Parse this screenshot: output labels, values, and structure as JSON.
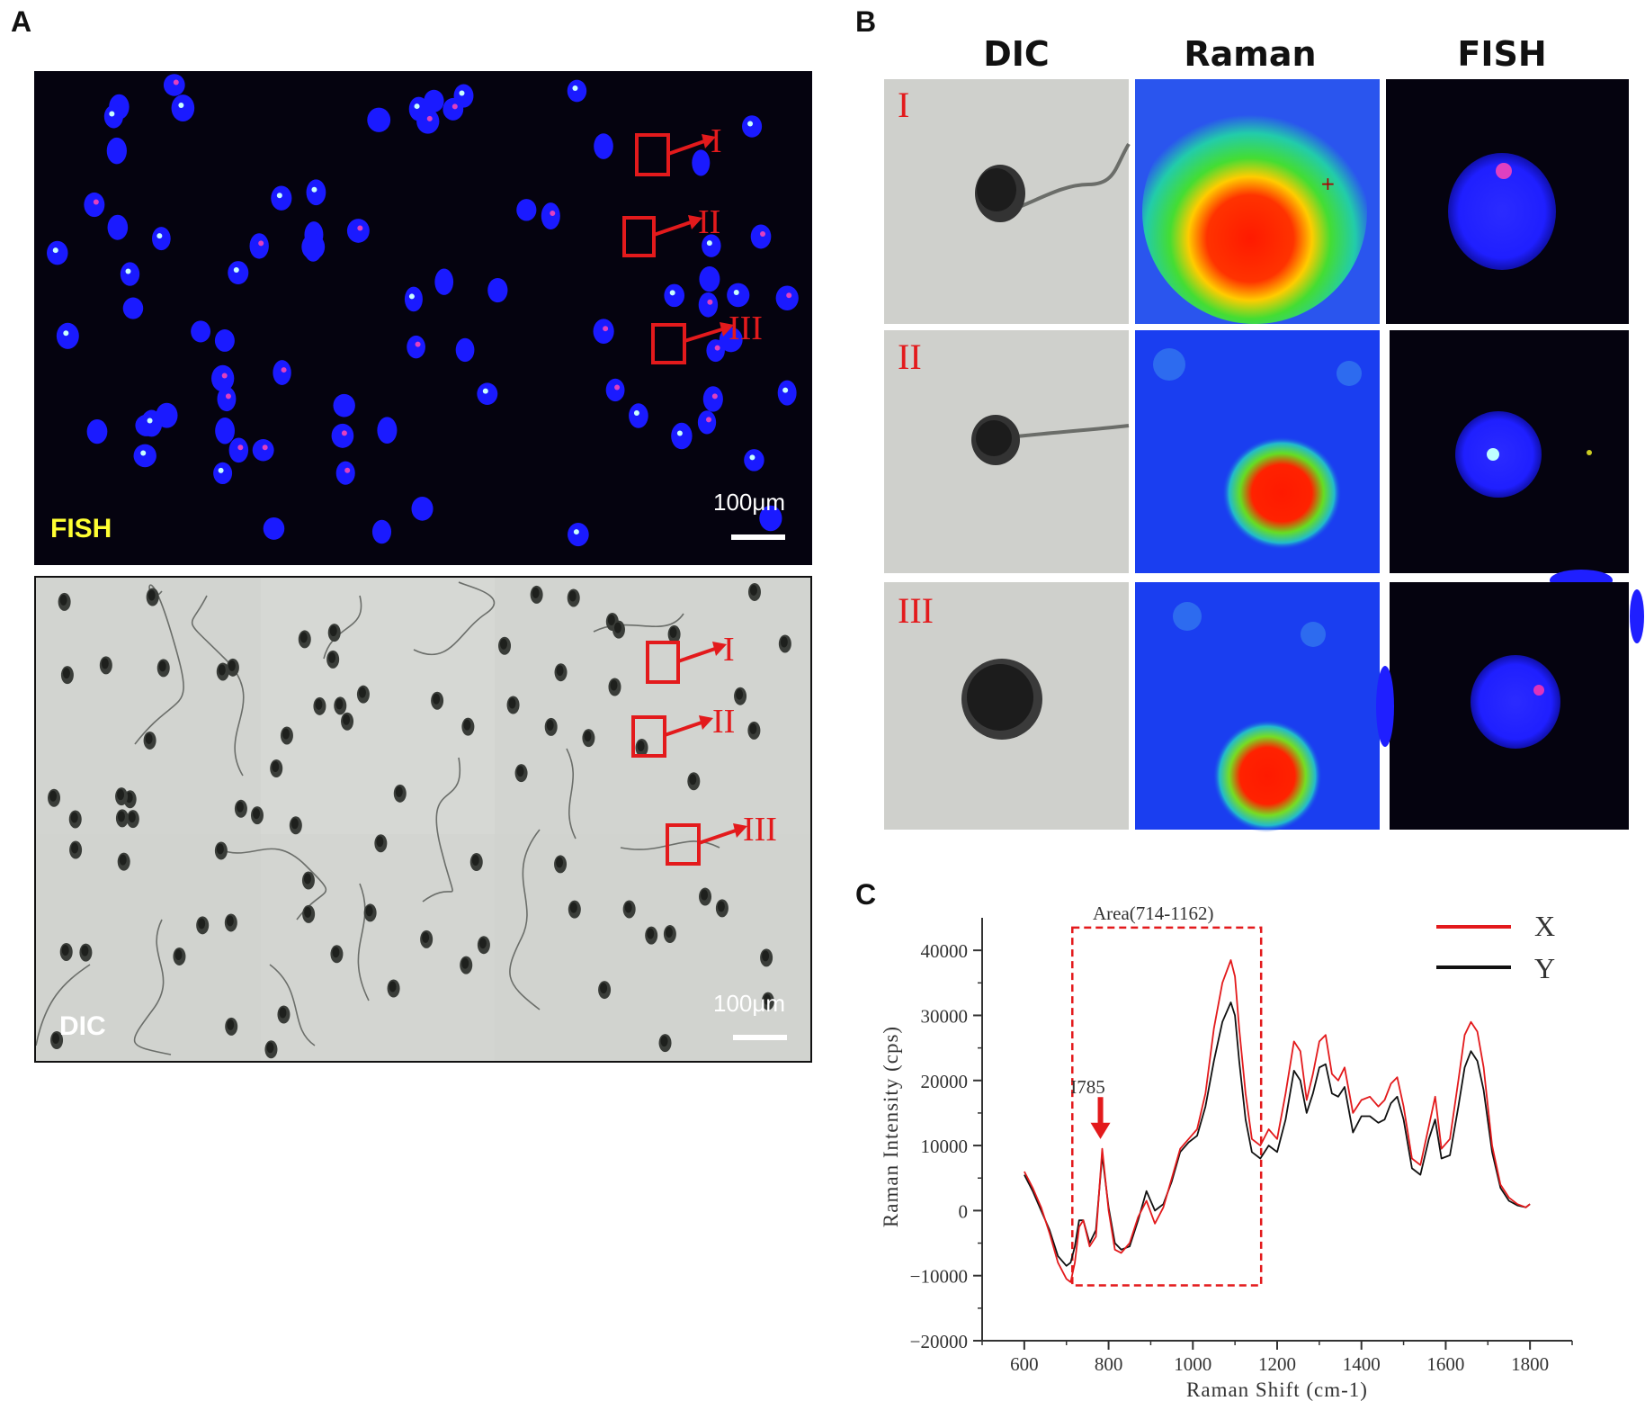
{
  "panels": {
    "a": {
      "letter": "A",
      "fish_label": "FISH",
      "dic_label": "DIC",
      "scale_bar_label": "100μm",
      "cell_markers": [
        "I",
        "II",
        "III"
      ]
    },
    "b": {
      "letter": "B",
      "columns": [
        "DIC",
        "Raman",
        "FISH"
      ],
      "rows": [
        "I",
        "II",
        "III"
      ]
    },
    "c": {
      "letter": "C"
    }
  },
  "colors": {
    "fish_background": "#05030f",
    "fish_nucleus": "#1a1aff",
    "dic_background": "#d2d4d0",
    "marker_red": "#e31a1c",
    "series_x": "#e31a1c",
    "series_y": "#111111"
  },
  "chart_data": {
    "type": "line",
    "title": "",
    "xlabel": "Raman Shift (cm-1)",
    "ylabel": "Raman Intensity (cps)",
    "xlim": [
      500,
      1900
    ],
    "ylim": [
      -20000,
      45000
    ],
    "xticks": [
      "600",
      "800",
      "1000",
      "1200",
      "1400",
      "1600",
      "1800"
    ],
    "yticks": [
      "-20000",
      "-10000",
      "0",
      "10000",
      "20000",
      "30000",
      "40000"
    ],
    "legend_position": "top-right",
    "annotations": {
      "area_box_label": "Area(714-1162)",
      "area_range": [
        714,
        1162
      ],
      "peak_label": "I785",
      "peak_x": 785
    },
    "x": [
      600,
      620,
      640,
      660,
      680,
      700,
      710,
      720,
      730,
      740,
      755,
      770,
      785,
      800,
      815,
      830,
      850,
      870,
      890,
      910,
      930,
      950,
      970,
      990,
      1010,
      1030,
      1050,
      1070,
      1090,
      1100,
      1110,
      1125,
      1140,
      1160,
      1180,
      1200,
      1220,
      1240,
      1255,
      1270,
      1285,
      1300,
      1315,
      1330,
      1345,
      1360,
      1380,
      1400,
      1420,
      1440,
      1455,
      1470,
      1485,
      1500,
      1520,
      1540,
      1560,
      1575,
      1590,
      1610,
      1630,
      1645,
      1660,
      1675,
      1690,
      1710,
      1730,
      1750,
      1770,
      1790,
      1800
    ],
    "series": [
      {
        "name": "X",
        "color": "#e31a1c",
        "values": [
          6000,
          3500,
          500,
          -3500,
          -8000,
          -10500,
          -11000,
          -8000,
          -2500,
          -1500,
          -5500,
          -4000,
          9500,
          0,
          -6000,
          -6500,
          -5000,
          -1000,
          1500,
          -2000,
          500,
          5000,
          9500,
          11000,
          12500,
          18000,
          28000,
          35000,
          38500,
          36000,
          28000,
          18000,
          11000,
          10000,
          12500,
          11000,
          18000,
          26000,
          24500,
          17000,
          21000,
          26000,
          27000,
          21000,
          20000,
          22000,
          15000,
          17000,
          17500,
          16000,
          17000,
          19500,
          20500,
          16000,
          8000,
          7000,
          13000,
          17500,
          9500,
          11000,
          20000,
          27000,
          29000,
          27500,
          22000,
          10000,
          4000,
          2000,
          1000,
          500,
          1000
        ]
      },
      {
        "name": "Y",
        "color": "#111111",
        "values": [
          5500,
          3000,
          0,
          -3000,
          -7000,
          -8500,
          -8000,
          -5500,
          -1500,
          -1500,
          -5000,
          -3000,
          8500,
          500,
          -5000,
          -6000,
          -5500,
          -1500,
          3000,
          0,
          1000,
          4500,
          9000,
          10500,
          11500,
          16000,
          23000,
          29000,
          32000,
          30000,
          23000,
          14000,
          9000,
          8000,
          10000,
          9000,
          14000,
          21500,
          20000,
          15000,
          18000,
          22000,
          22500,
          18000,
          17500,
          19000,
          12000,
          14500,
          14500,
          13500,
          14000,
          16500,
          17500,
          14000,
          6500,
          5500,
          11000,
          14000,
          8000,
          8500,
          16000,
          22000,
          24500,
          23000,
          18500,
          9000,
          3500,
          1500,
          800,
          500,
          1000
        ]
      }
    ]
  }
}
